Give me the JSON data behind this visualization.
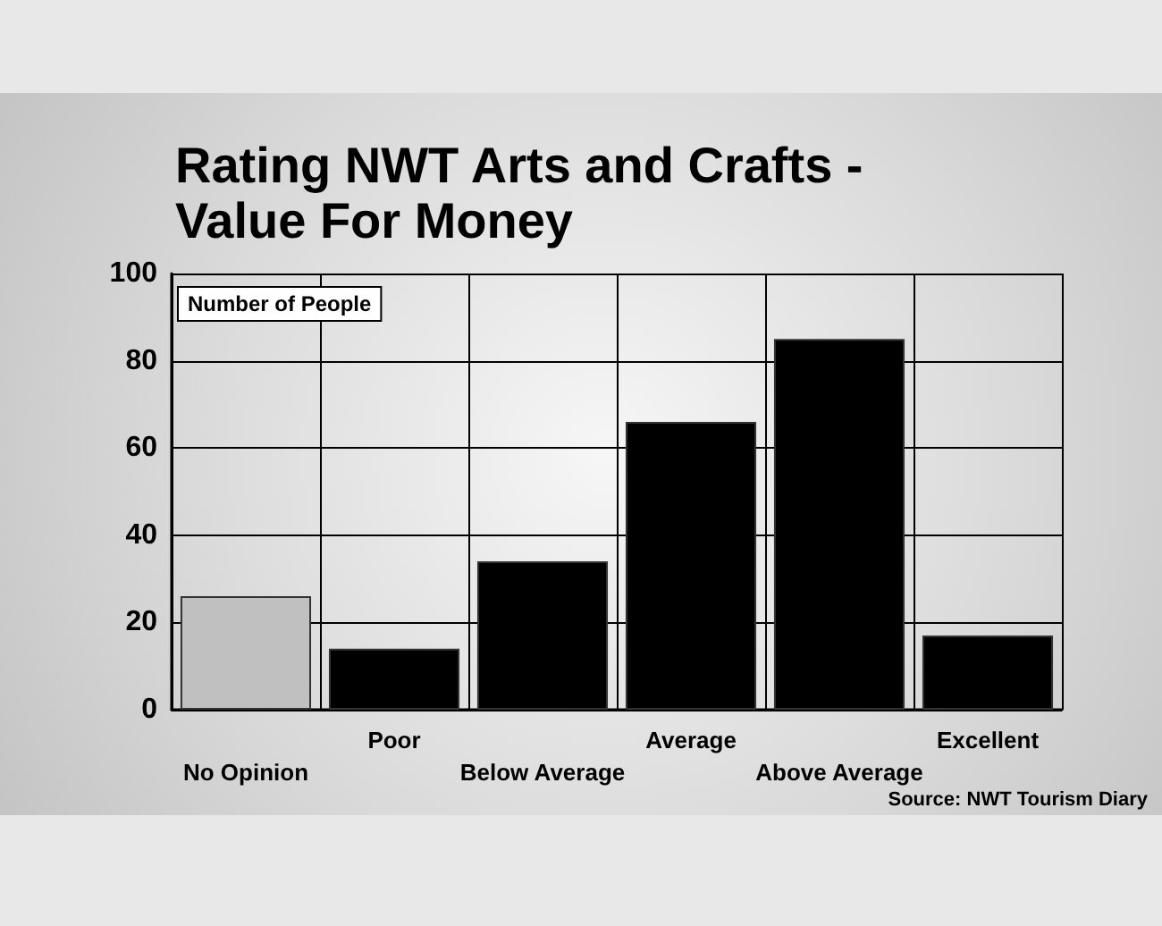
{
  "chart_data": {
    "type": "bar",
    "title": "Rating NWT Arts and Crafts -\nValue For Money",
    "ylabel": "Number of People",
    "categories": [
      "No Opinion",
      "Poor",
      "Below Average",
      "Average",
      "Above Average",
      "Excellent"
    ],
    "values": [
      26,
      14,
      34,
      66,
      85,
      17
    ],
    "colors": [
      "#c0c0c0",
      "#000000",
      "#000000",
      "#000000",
      "#000000",
      "#000000"
    ],
    "ylim": [
      0,
      100
    ],
    "yticks": [
      0,
      20,
      40,
      60,
      80,
      100
    ],
    "grid": true,
    "annotations": [
      "Source: NWT Tourism Diary"
    ]
  }
}
